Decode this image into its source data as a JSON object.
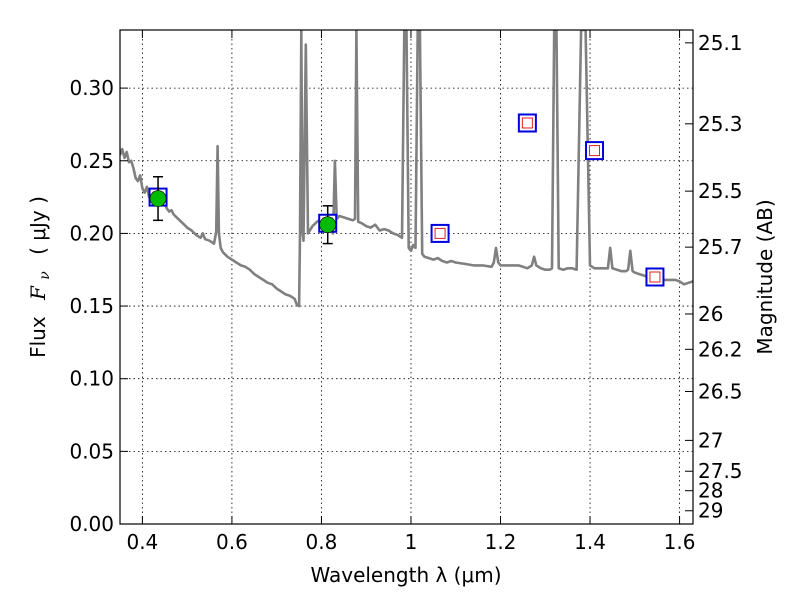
{
  "chart_data": {
    "type": "scatter",
    "xlabel": "Wavelength  λ (μm)",
    "ylabel_text": "Flux",
    "ylabel_symbol": "F",
    "ylabel_subscript": "ν",
    "ylabel_unit": "( μJy )",
    "y2label": "Magnitude (AB)",
    "xlim": [
      0.35,
      1.63
    ],
    "ylim": [
      0.0,
      0.34
    ],
    "grid": true,
    "x_ticks": [
      {
        "value": 0.4,
        "label": "0.4"
      },
      {
        "value": 0.6,
        "label": "0.6"
      },
      {
        "value": 0.8,
        "label": "0.8"
      },
      {
        "value": 1.0,
        "label": "1"
      },
      {
        "value": 1.2,
        "label": "1.2"
      },
      {
        "value": 1.4,
        "label": "1.4"
      },
      {
        "value": 1.6,
        "label": "1.6"
      }
    ],
    "y_ticks": [
      {
        "value": 0.0,
        "label": "0.00"
      },
      {
        "value": 0.05,
        "label": "0.05"
      },
      {
        "value": 0.1,
        "label": "0.10"
      },
      {
        "value": 0.15,
        "label": "0.15"
      },
      {
        "value": 0.2,
        "label": "0.20"
      },
      {
        "value": 0.25,
        "label": "0.25"
      },
      {
        "value": 0.3,
        "label": "0.30"
      }
    ],
    "mag_ticks": [
      {
        "mag": 25.1,
        "label": "25.1"
      },
      {
        "mag": 25.3,
        "label": "25.3"
      },
      {
        "mag": 25.5,
        "label": "25.5"
      },
      {
        "mag": 25.7,
        "label": "25.7"
      },
      {
        "mag": 26.0,
        "label": "26"
      },
      {
        "mag": 26.2,
        "label": "26.2"
      },
      {
        "mag": 26.5,
        "label": "26.5"
      },
      {
        "mag": 27.0,
        "label": "27"
      },
      {
        "mag": 27.5,
        "label": "27.5"
      },
      {
        "mag": 28.0,
        "label": "28"
      },
      {
        "mag": 29.0,
        "label": "29"
      }
    ],
    "model_spectrum": {
      "color": "#808080",
      "points": [
        [
          0.35,
          0.254
        ],
        [
          0.355,
          0.258
        ],
        [
          0.36,
          0.252
        ],
        [
          0.365,
          0.256
        ],
        [
          0.37,
          0.249
        ],
        [
          0.375,
          0.25
        ],
        [
          0.38,
          0.245
        ],
        [
          0.385,
          0.238
        ],
        [
          0.39,
          0.236
        ],
        [
          0.395,
          0.24
        ],
        [
          0.4,
          0.231
        ],
        [
          0.405,
          0.228
        ],
        [
          0.41,
          0.232
        ],
        [
          0.415,
          0.225
        ],
        [
          0.42,
          0.229
        ],
        [
          0.425,
          0.224
        ],
        [
          0.43,
          0.226
        ],
        [
          0.435,
          0.222
        ],
        [
          0.44,
          0.223
        ],
        [
          0.445,
          0.221
        ],
        [
          0.45,
          0.22
        ],
        [
          0.455,
          0.217
        ],
        [
          0.46,
          0.215
        ],
        [
          0.465,
          0.216
        ],
        [
          0.47,
          0.213
        ],
        [
          0.48,
          0.21
        ],
        [
          0.49,
          0.207
        ],
        [
          0.5,
          0.204
        ],
        [
          0.51,
          0.202
        ],
        [
          0.52,
          0.199
        ],
        [
          0.53,
          0.197
        ],
        [
          0.535,
          0.2
        ],
        [
          0.54,
          0.196
        ],
        [
          0.55,
          0.195
        ],
        [
          0.56,
          0.193
        ],
        [
          0.565,
          0.201
        ],
        [
          0.568,
          0.26
        ],
        [
          0.571,
          0.2
        ],
        [
          0.575,
          0.19
        ],
        [
          0.58,
          0.187
        ],
        [
          0.59,
          0.184
        ],
        [
          0.6,
          0.182
        ],
        [
          0.61,
          0.18
        ],
        [
          0.62,
          0.178
        ],
        [
          0.63,
          0.177
        ],
        [
          0.64,
          0.175
        ],
        [
          0.65,
          0.172
        ],
        [
          0.66,
          0.17
        ],
        [
          0.67,
          0.168
        ],
        [
          0.68,
          0.166
        ],
        [
          0.69,
          0.165
        ],
        [
          0.7,
          0.162
        ],
        [
          0.71,
          0.16
        ],
        [
          0.72,
          0.158
        ],
        [
          0.73,
          0.157
        ],
        [
          0.74,
          0.155
        ],
        [
          0.745,
          0.151
        ],
        [
          0.75,
          0.15
        ],
        [
          0.752,
          0.2
        ],
        [
          0.755,
          0.34
        ],
        [
          0.758,
          0.2
        ],
        [
          0.76,
          0.195
        ],
        [
          0.765,
          0.33
        ],
        [
          0.77,
          0.2
        ],
        [
          0.78,
          0.205
        ],
        [
          0.79,
          0.208
        ],
        [
          0.8,
          0.21
        ],
        [
          0.81,
          0.209
        ],
        [
          0.82,
          0.206
        ],
        [
          0.826,
          0.2
        ],
        [
          0.83,
          0.25
        ],
        [
          0.834,
          0.21
        ],
        [
          0.84,
          0.212
        ],
        [
          0.85,
          0.211
        ],
        [
          0.86,
          0.21
        ],
        [
          0.87,
          0.209
        ],
        [
          0.875,
          0.21
        ],
        [
          0.878,
          0.34
        ],
        [
          0.882,
          0.208
        ],
        [
          0.89,
          0.207
        ],
        [
          0.9,
          0.205
        ],
        [
          0.91,
          0.204
        ],
        [
          0.92,
          0.206
        ],
        [
          0.93,
          0.202
        ],
        [
          0.94,
          0.203
        ],
        [
          0.95,
          0.202
        ],
        [
          0.96,
          0.2
        ],
        [
          0.97,
          0.199
        ],
        [
          0.98,
          0.197
        ],
        [
          0.985,
          0.34
        ],
        [
          0.99,
          0.34
        ],
        [
          0.995,
          0.19
        ],
        [
          1.0,
          0.188
        ],
        [
          1.005,
          0.192
        ],
        [
          1.01,
          0.19
        ],
        [
          1.015,
          0.34
        ],
        [
          1.02,
          0.34
        ],
        [
          1.025,
          0.186
        ],
        [
          1.03,
          0.184
        ],
        [
          1.04,
          0.183
        ],
        [
          1.05,
          0.182
        ],
        [
          1.06,
          0.183
        ],
        [
          1.07,
          0.181
        ],
        [
          1.08,
          0.18
        ],
        [
          1.09,
          0.181
        ],
        [
          1.1,
          0.18
        ],
        [
          1.12,
          0.179
        ],
        [
          1.14,
          0.178
        ],
        [
          1.16,
          0.178
        ],
        [
          1.18,
          0.177
        ],
        [
          1.185,
          0.18
        ],
        [
          1.19,
          0.19
        ],
        [
          1.195,
          0.18
        ],
        [
          1.2,
          0.178
        ],
        [
          1.22,
          0.178
        ],
        [
          1.24,
          0.178
        ],
        [
          1.25,
          0.177
        ],
        [
          1.26,
          0.176
        ],
        [
          1.27,
          0.178
        ],
        [
          1.275,
          0.184
        ],
        [
          1.28,
          0.178
        ],
        [
          1.29,
          0.176
        ],
        [
          1.3,
          0.175
        ],
        [
          1.31,
          0.175
        ],
        [
          1.315,
          0.176
        ],
        [
          1.32,
          0.34
        ],
        [
          1.325,
          0.34
        ],
        [
          1.33,
          0.176
        ],
        [
          1.34,
          0.175
        ],
        [
          1.35,
          0.176
        ],
        [
          1.36,
          0.176
        ],
        [
          1.37,
          0.175
        ],
        [
          1.38,
          0.34
        ],
        [
          1.39,
          0.34
        ],
        [
          1.4,
          0.178
        ],
        [
          1.41,
          0.176
        ],
        [
          1.42,
          0.176
        ],
        [
          1.43,
          0.176
        ],
        [
          1.44,
          0.176
        ],
        [
          1.445,
          0.19
        ],
        [
          1.45,
          0.176
        ],
        [
          1.46,
          0.175
        ],
        [
          1.47,
          0.174
        ],
        [
          1.48,
          0.174
        ],
        [
          1.485,
          0.175
        ],
        [
          1.49,
          0.188
        ],
        [
          1.495,
          0.174
        ],
        [
          1.5,
          0.173
        ],
        [
          1.51,
          0.172
        ],
        [
          1.52,
          0.171
        ],
        [
          1.53,
          0.17
        ],
        [
          1.54,
          0.17
        ],
        [
          1.55,
          0.169
        ],
        [
          1.56,
          0.168
        ],
        [
          1.57,
          0.168
        ],
        [
          1.58,
          0.168
        ],
        [
          1.59,
          0.168
        ],
        [
          1.6,
          0.167
        ],
        [
          1.61,
          0.165
        ],
        [
          1.62,
          0.166
        ],
        [
          1.63,
          0.167
        ]
      ]
    },
    "observed_points": {
      "fill_color": "#00bb00",
      "errorbar_color": "#000000",
      "points": [
        {
          "x": 0.435,
          "y": 0.224,
          "yerr": 0.015
        },
        {
          "x": 0.814,
          "y": 0.206,
          "yerr": 0.013
        }
      ]
    },
    "model_photometry": {
      "outer_color": "#0000dd",
      "inner_color": "#e02020",
      "points": [
        {
          "x": 0.435,
          "y": 0.225
        },
        {
          "x": 0.814,
          "y": 0.207
        },
        {
          "x": 1.065,
          "y": 0.2
        },
        {
          "x": 1.26,
          "y": 0.276
        },
        {
          "x": 1.41,
          "y": 0.257
        },
        {
          "x": 1.545,
          "y": 0.17
        }
      ]
    }
  }
}
